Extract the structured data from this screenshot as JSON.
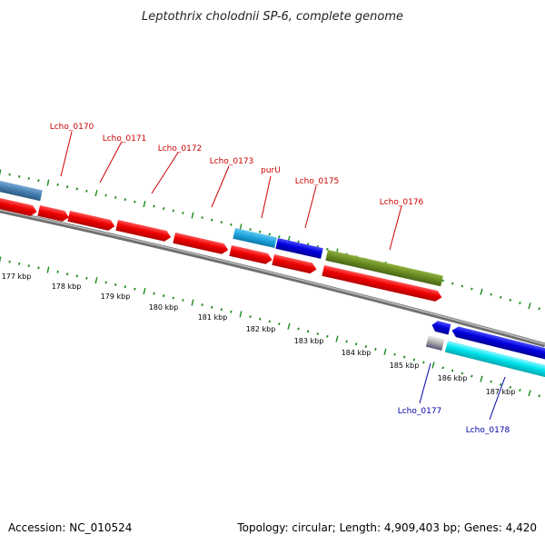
{
  "title": "Leptothrix cholodnii SP-6, complete genome",
  "footer": {
    "accession": "Accession: NC_010524",
    "topology": "Topology: circular; Length: 4,909,403 bp; Genes: 4,420"
  },
  "kbp_labels": [
    "177 kbp",
    "178 kbp",
    "179 kbp",
    "180 kbp",
    "181 kbp",
    "182 kbp",
    "183 kbp",
    "184 kbp",
    "185 kbp",
    "186 kbp",
    "187 kbp"
  ],
  "gene_labels_top": [
    "Lcho_0170",
    "Lcho_0171",
    "Lcho_0172",
    "Lcho_0173",
    "purU",
    "Lcho_0175",
    "Lcho_0176"
  ],
  "gene_labels_bottom": [
    "Lcho_0177",
    "Lcho_0178"
  ],
  "colors": {
    "forward_gene": "#ee0000",
    "reverse_gene": "#0000dd",
    "olive_gene": "#6b8e23",
    "light_blue_gene": "#1fa8e0",
    "cyan_gene": "#00e5ee",
    "steel_gene": "#4682b4",
    "backbone": "#808080",
    "ticks": "#1a8a1a",
    "top_label": "#cc0000",
    "bottom_label": "#0000aa"
  }
}
